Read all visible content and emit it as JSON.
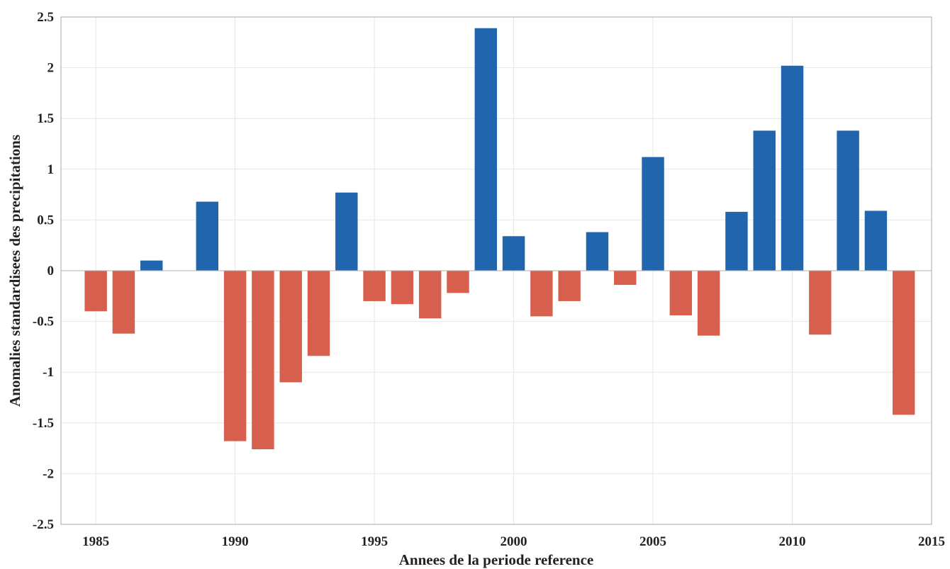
{
  "chart_data": {
    "type": "bar",
    "title": "",
    "xlabel": "Annees de la periode reference",
    "ylabel": "Anomalies standardisees des precipitations",
    "xlim": [
      1983.75,
      2015
    ],
    "ylim": [
      -2.5,
      2.5
    ],
    "x_ticks": [
      1985,
      1990,
      1995,
      2000,
      2005,
      2010,
      2015
    ],
    "y_ticks": [
      2.5,
      2,
      1.5,
      1,
      0.5,
      0,
      -0.5,
      -1,
      -1.5,
      -2,
      -2.5
    ],
    "grid": true,
    "x": [
      1985,
      1986,
      1987,
      1988,
      1989,
      1990,
      1991,
      1992,
      1993,
      1994,
      1995,
      1996,
      1997,
      1998,
      1999,
      2000,
      2001,
      2002,
      2003,
      2004,
      2005,
      2006,
      2007,
      2008,
      2009,
      2010,
      2011,
      2012,
      2013,
      2014
    ],
    "values": [
      -0.4,
      -0.62,
      0.1,
      0,
      0.68,
      -1.68,
      -1.76,
      -1.1,
      -0.84,
      0.77,
      -0.3,
      -0.33,
      -0.47,
      -0.22,
      2.39,
      0.34,
      -0.45,
      -0.3,
      0.38,
      -0.14,
      1.12,
      -0.44,
      -0.64,
      0.58,
      1.38,
      2.02,
      -0.63,
      1.38,
      0.59,
      -1.42
    ],
    "colors": {
      "positive": "#2166ac",
      "negative": "#d6604d"
    }
  }
}
